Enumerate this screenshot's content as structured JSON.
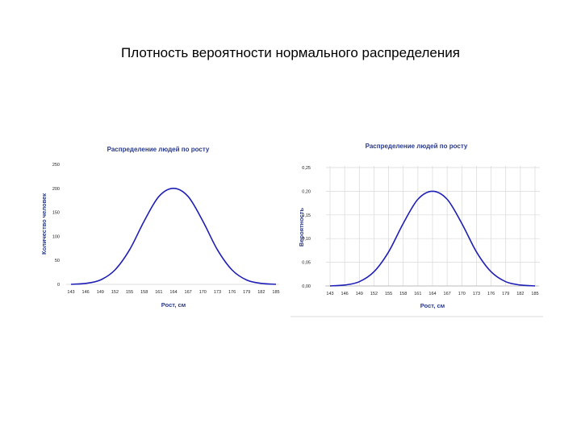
{
  "slide_title": "Плотность вероятности нормального распределения",
  "colors": {
    "curve": "#1f1fb8",
    "title": "#2a3a8c",
    "grid": "#d8d8d8"
  },
  "chart_data": [
    {
      "type": "line",
      "title": "Распределение людей по росту",
      "xlabel": "Рост, см",
      "ylabel": "Количество человек",
      "x_ticks": [
        "143",
        "146",
        "149",
        "152",
        "155",
        "158",
        "161",
        "164",
        "167",
        "170",
        "173",
        "176",
        "179",
        "182",
        "185"
      ],
      "y_ticks": [
        "0",
        "50",
        "100",
        "150",
        "200",
        "250"
      ],
      "xlim": [
        143,
        185
      ],
      "ylim": [
        0,
        250
      ],
      "grid": false,
      "series": [
        {
          "x": [
            143,
            146,
            149,
            152,
            155,
            158,
            161,
            164,
            167,
            170,
            173,
            176,
            179,
            182,
            185
          ],
          "values": [
            0.2,
            2,
            9,
            30,
            72,
            132,
            183,
            200,
            183,
            132,
            72,
            30,
            9,
            2,
            0.2
          ]
        }
      ]
    },
    {
      "type": "line",
      "title": "Распределение людей по росту",
      "xlabel": "Рост, см",
      "ylabel": "Вероятность",
      "x_ticks": [
        "143",
        "146",
        "149",
        "152",
        "155",
        "158",
        "161",
        "164",
        "167",
        "170",
        "173",
        "176",
        "179",
        "182",
        "185"
      ],
      "y_ticks": [
        "0,00",
        "0,05",
        "0,10",
        "0,15",
        "0,20",
        "0,25"
      ],
      "xlim": [
        143,
        185
      ],
      "ylim": [
        0,
        0.25
      ],
      "grid": true,
      "series": [
        {
          "x": [
            143,
            146,
            149,
            152,
            155,
            158,
            161,
            164,
            167,
            170,
            173,
            176,
            179,
            182,
            185
          ],
          "values": [
            0.0002,
            0.002,
            0.009,
            0.03,
            0.072,
            0.132,
            0.183,
            0.2,
            0.183,
            0.132,
            0.072,
            0.03,
            0.009,
            0.002,
            0.0002
          ]
        }
      ]
    }
  ]
}
